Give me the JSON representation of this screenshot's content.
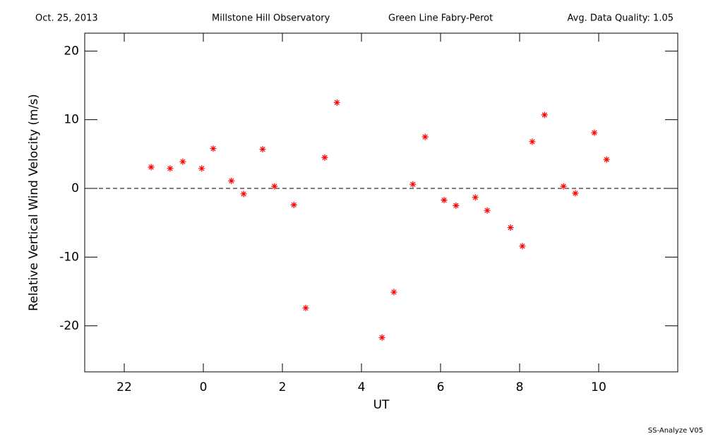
{
  "header": {
    "date": "Oct. 25, 2013",
    "observatory": "Millstone Hill Observatory",
    "instrument": "Green Line Fabry-Perot",
    "quality": "Avg. Data Quality: 1.05"
  },
  "footer": "SS-Analyze V05",
  "chart_data": {
    "type": "scatter",
    "xlabel": "UT",
    "ylabel": "Relative Vertical Wind Velocity (m/s)",
    "color": "#ff0000",
    "marker": "asterisk",
    "reference_line": 0,
    "xlim": [
      21,
      36
    ],
    "xticks": [
      22,
      {
        "value": 24,
        "label": "0"
      },
      {
        "value": 26,
        "label": "2"
      },
      {
        "value": 28,
        "label": "4"
      },
      {
        "value": 30,
        "label": "6"
      },
      {
        "value": 32,
        "label": "8"
      },
      {
        "value": 34,
        "label": "10"
      }
    ],
    "ylim": [
      -26.7,
      22.6
    ],
    "yticks": [
      -20,
      -10,
      0,
      10,
      20
    ],
    "x": [
      22.68,
      23.16,
      23.48,
      23.96,
      24.25,
      24.71,
      25.02,
      25.5,
      25.8,
      26.29,
      26.59,
      27.07,
      27.38,
      28.52,
      28.82,
      29.3,
      29.61,
      30.09,
      30.39,
      30.88,
      31.18,
      31.77,
      32.07,
      32.32,
      32.63,
      33.11,
      33.41,
      33.89,
      34.2
    ],
    "y": [
      3.1,
      2.9,
      3.9,
      2.9,
      5.8,
      1.1,
      -0.8,
      5.7,
      0.3,
      -2.4,
      -17.4,
      4.5,
      12.5,
      -21.7,
      -15.1,
      0.6,
      7.5,
      -1.7,
      -2.5,
      -1.3,
      -3.2,
      -5.7,
      -8.4,
      6.8,
      10.7,
      0.3,
      -0.7,
      8.1,
      4.2
    ]
  }
}
